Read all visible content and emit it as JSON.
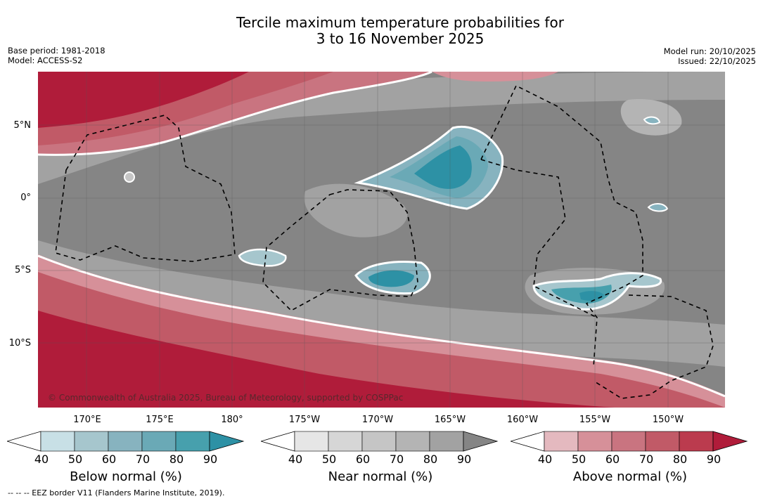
{
  "title_line1": "Tercile maximum temperature probabilities for",
  "title_line2": "3 to 16 November 2025",
  "base_period": "Base period: 1981-2018",
  "model": "Model: ACCESS-S2",
  "model_run": "Model run: 20/10/2025",
  "issued": "Issued: 22/10/2025",
  "copyright": "© Commonwealth of Australia 2025, Bureau of Meteorology, supported by COSPPac",
  "footnote": "--  --  -- EEZ border V11 (Flanders Marine Institute, 2019).",
  "lat_labels": [
    "5°N",
    "0°",
    "5°S",
    "10°S"
  ],
  "lon_labels": [
    "170°E",
    "175°E",
    "180°",
    "175°W",
    "170°W",
    "165°W",
    "160°W",
    "155°W",
    "150°W"
  ],
  "colorbars": [
    {
      "label": "Below normal (%)",
      "ticks": [
        "40",
        "50",
        "60",
        "70",
        "80",
        "90"
      ],
      "colors": [
        "#ffffff",
        "#c8e0e6",
        "#a6c6cd",
        "#87b3bf",
        "#6aa9b6",
        "#47a0ad",
        "#2d91a5"
      ]
    },
    {
      "label": "Near normal (%)",
      "ticks": [
        "40",
        "50",
        "60",
        "70",
        "80",
        "90"
      ],
      "colors": [
        "#ffffff",
        "#e6e6e6",
        "#d6d6d6",
        "#c5c5c5",
        "#b4b4b4",
        "#a2a2a2",
        "#858585"
      ]
    },
    {
      "label": "Above normal (%)",
      "ticks": [
        "40",
        "50",
        "60",
        "70",
        "80",
        "90"
      ],
      "colors": [
        "#ffffff",
        "#e4b9bf",
        "#d69099",
        "#c97480",
        "#c15a67",
        "#bb3b4e",
        "#b01c3a"
      ]
    }
  ]
}
